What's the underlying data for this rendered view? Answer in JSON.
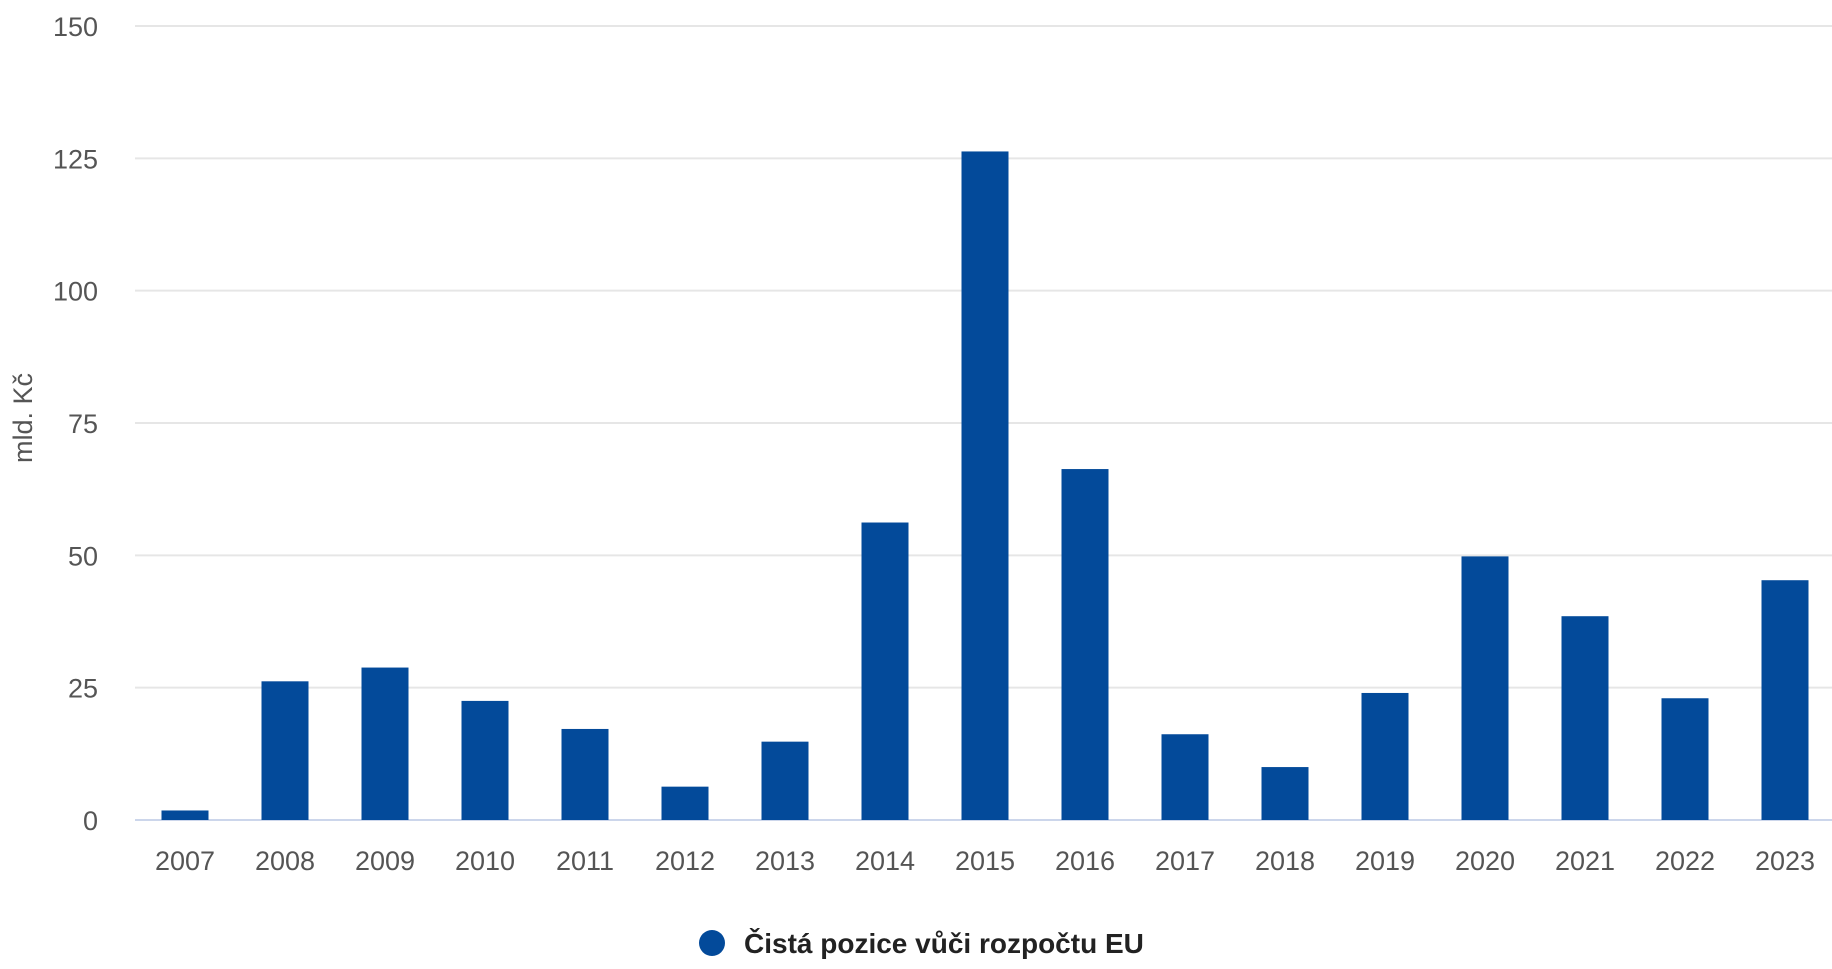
{
  "chart_data": {
    "type": "bar",
    "title": "",
    "xlabel": "",
    "ylabel": "mld. Kč",
    "ylim": [
      0,
      150
    ],
    "yticks": [
      0,
      25,
      50,
      75,
      100,
      125,
      150
    ],
    "grid": true,
    "legend_position": "bottom-center",
    "categories": [
      "2007",
      "2008",
      "2009",
      "2010",
      "2011",
      "2012",
      "2013",
      "2014",
      "2015",
      "2016",
      "2017",
      "2018",
      "2019",
      "2020",
      "2021",
      "2022",
      "2023"
    ],
    "series": [
      {
        "name": "Čistá pozice vůči rozpočtu EU",
        "color": "#034a9a",
        "values": [
          1.8,
          26.2,
          28.8,
          22.5,
          17.2,
          6.3,
          14.8,
          56.2,
          126.3,
          66.3,
          16.2,
          10.0,
          24.0,
          49.8,
          38.5,
          23.0,
          45.3
        ]
      }
    ]
  }
}
